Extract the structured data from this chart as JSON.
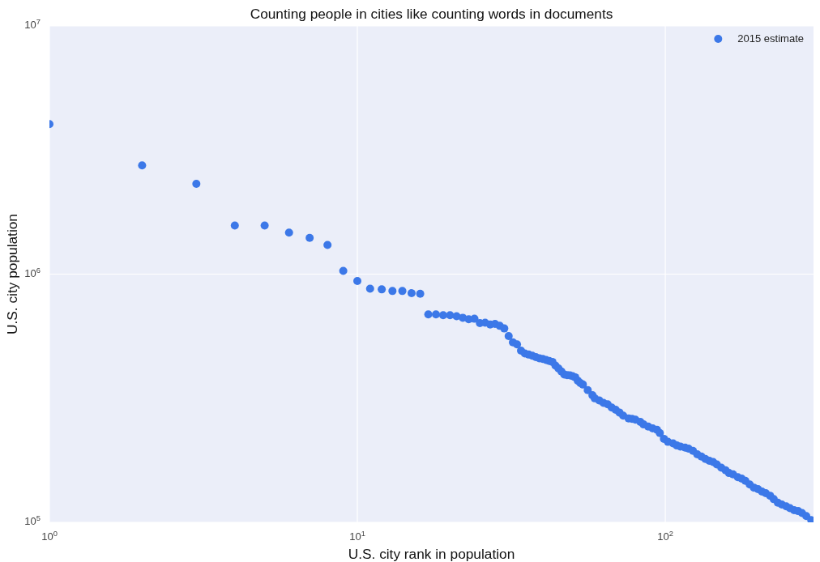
{
  "chart_data": {
    "type": "scatter",
    "title": "Counting people in cities like counting words in documents",
    "xlabel": "U.S. city rank in population",
    "ylabel": "U.S. city population",
    "log": "xy",
    "grid": true,
    "legend": "top right",
    "marker": "circle",
    "xlim": [
      1,
      303
    ],
    "ylim": [
      100000,
      10000000
    ],
    "xticks": [
      {
        "value": 1,
        "label": "10$^{0}$"
      },
      {
        "value": 10,
        "label": "10$^{1}$"
      },
      {
        "value": 100,
        "label": "10$^{2}$"
      }
    ],
    "yticks": [
      {
        "value": 100000,
        "label": "10$^{5}$"
      },
      {
        "value": 1000000,
        "label": "10$^{6}$"
      },
      {
        "value": 10000000,
        "label": "10$^{7}$"
      }
    ],
    "x": [
      1,
      2,
      3,
      4,
      5,
      6,
      7,
      8,
      9,
      10,
      11,
      12,
      13,
      14,
      15,
      16,
      17,
      18,
      19,
      20,
      21,
      22,
      23,
      24,
      25,
      26,
      27,
      28,
      29,
      30,
      31,
      32,
      33,
      34,
      35,
      36,
      37,
      38,
      39,
      40,
      41,
      42,
      43,
      44,
      45,
      46,
      47,
      48,
      49,
      50,
      51,
      52,
      53,
      54,
      56,
      58,
      59,
      61,
      63,
      65,
      67,
      69,
      71,
      73,
      76,
      78,
      80,
      83,
      85,
      88,
      91,
      94,
      96,
      99,
      102,
      106,
      109,
      112,
      116,
      119,
      123,
      127,
      131,
      135,
      139,
      143,
      147,
      152,
      157,
      161,
      166,
      172,
      177,
      182,
      188,
      194,
      200,
      206,
      212,
      219,
      225,
      232,
      239,
      247,
      254,
      262,
      270,
      278,
      287,
      298
    ],
    "series": [
      {
        "name": "2015 estimate",
        "color": "#3c78e8",
        "values": [
          4020000,
          2740000,
          2310000,
          1570000,
          1570000,
          1470000,
          1400000,
          1310000,
          1030000,
          938000,
          874000,
          868000,
          855000,
          855000,
          838000,
          834000,
          688000,
          688000,
          683000,
          683000,
          677000,
          667000,
          658000,
          661000,
          635000,
          637000,
          627000,
          630000,
          619000,
          604000,
          563000,
          531000,
          521000,
          492000,
          479000,
          474000,
          469000,
          463000,
          458000,
          455000,
          451000,
          447000,
          443000,
          428000,
          417000,
          405000,
          394000,
          392000,
          391000,
          388000,
          384000,
          372000,
          364000,
          359000,
          341000,
          325000,
          316000,
          310000,
          303000,
          299000,
          290000,
          284000,
          277000,
          269000,
          262000,
          261000,
          259000,
          254000,
          248000,
          243000,
          239000,
          236000,
          229000,
          217000,
          211000,
          208000,
          204000,
          202000,
          200000,
          198000,
          194000,
          188000,
          184000,
          180000,
          177000,
          175000,
          171000,
          166000,
          162000,
          158000,
          156000,
          152000,
          150000,
          147000,
          142000,
          138000,
          136000,
          133000,
          131000,
          128000,
          124000,
          120000,
          118000,
          116000,
          114000,
          112000,
          111000,
          109000,
          106000,
          102000
        ]
      }
    ]
  }
}
